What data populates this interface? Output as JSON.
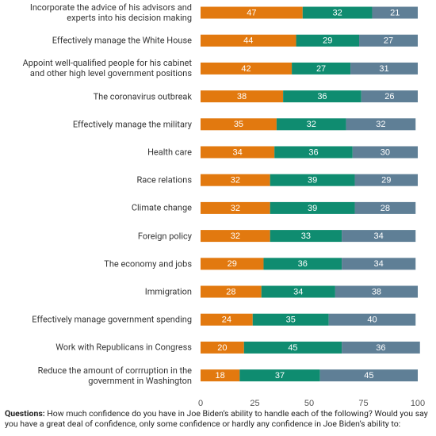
{
  "chart_data": {
    "type": "stacked-bar-horizontal",
    "categories": [
      "Incorporate the advice of his advisors and\nexperts into his decision making",
      "Effectively manage the White House",
      "Appoint well-qualified people for his cabinet\nand other high level government positions",
      "The coronavirus outbreak",
      "Effectively manage the military",
      "Health care",
      "Race relations",
      "Climate change",
      "Foreign policy",
      "The economy and jobs",
      "Immigration",
      "Effectively manage government spending",
      "Work with Republicans in Congress",
      "Reduce the amount of corrruption in the\ngovernment in Washington"
    ],
    "series": [
      {
        "color": "#e2790f",
        "values": [
          47,
          44,
          42,
          38,
          35,
          34,
          32,
          32,
          32,
          29,
          28,
          24,
          20,
          18
        ]
      },
      {
        "color": "#0f8c70",
        "values": [
          32,
          29,
          27,
          36,
          32,
          36,
          39,
          39,
          33,
          36,
          34,
          35,
          45,
          37
        ]
      },
      {
        "color": "#5f7f96",
        "values": [
          21,
          27,
          31,
          26,
          32,
          30,
          29,
          28,
          34,
          34,
          38,
          40,
          36,
          45
        ]
      }
    ],
    "xlim": [
      0,
      100
    ],
    "xticks": [
      0,
      25,
      50,
      75,
      100
    ],
    "grid": false,
    "footnote": {
      "label": "Questions:",
      "text": "How much confidence do you have in Joe Biden’s ability to handle each of the following? Would you say you have a great deal of confidence, only some confidence or hardly any confidence in Joe Biden’s ability to:"
    }
  }
}
